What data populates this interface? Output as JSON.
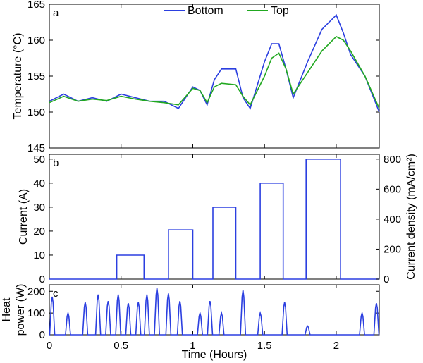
{
  "chart_data": [
    {
      "type": "line",
      "panel_label": "a",
      "ylabel": "Temperature (°C)",
      "xlim": [
        0,
        2.3
      ],
      "ylim": [
        145,
        165
      ],
      "yticks": [
        145,
        150,
        155,
        160,
        165
      ],
      "legend": {
        "placement": "top-center",
        "entries": [
          "Bottom",
          "Top"
        ]
      },
      "colors": {
        "bottom": "#2b3fe0",
        "top": "#21a820"
      },
      "series": [
        {
          "name": "Bottom",
          "x": [
            0,
            0.1,
            0.2,
            0.3,
            0.4,
            0.5,
            0.6,
            0.7,
            0.8,
            0.9,
            1.0,
            1.05,
            1.1,
            1.15,
            1.2,
            1.3,
            1.35,
            1.4,
            1.5,
            1.55,
            1.6,
            1.65,
            1.7,
            1.8,
            1.9,
            2.0,
            2.05,
            2.1,
            2.2,
            2.3
          ],
          "y": [
            151.5,
            152.5,
            151.5,
            152,
            151.5,
            152.5,
            152,
            151.5,
            151.5,
            150.5,
            153.5,
            153,
            151,
            154.5,
            156,
            156,
            152,
            150.5,
            157,
            159.5,
            159.5,
            156,
            152,
            157,
            161.5,
            163.5,
            161,
            158,
            155,
            150
          ]
        },
        {
          "name": "Top",
          "x": [
            0,
            0.1,
            0.2,
            0.3,
            0.4,
            0.5,
            0.6,
            0.7,
            0.8,
            0.9,
            1.0,
            1.05,
            1.1,
            1.15,
            1.2,
            1.3,
            1.35,
            1.4,
            1.5,
            1.55,
            1.6,
            1.65,
            1.7,
            1.8,
            1.9,
            2.0,
            2.05,
            2.1,
            2.2,
            2.3
          ],
          "y": [
            151.3,
            152.2,
            151.5,
            151.8,
            151.6,
            152.2,
            151.8,
            151.5,
            151.3,
            151,
            153.3,
            153,
            151.3,
            153.5,
            154,
            153.8,
            152.2,
            151,
            155,
            157.5,
            158.2,
            156,
            152.5,
            155.5,
            158.5,
            160.5,
            160,
            158.5,
            155,
            150.5
          ]
        }
      ]
    },
    {
      "type": "line",
      "panel_label": "b",
      "ylabel": "Current (A)",
      "ylabel_right": "Current density (mA/cm²)",
      "xlim": [
        0,
        2.3
      ],
      "ylim": [
        0,
        52
      ],
      "yticks": [
        0,
        10,
        20,
        30,
        40,
        50
      ],
      "yticks_right": [
        0,
        200,
        400,
        600,
        800
      ],
      "series": [
        {
          "name": "Current",
          "x": [
            0,
            0.47,
            0.47,
            0.66,
            0.66,
            0.83,
            0.83,
            1.0,
            1.0,
            1.14,
            1.14,
            1.3,
            1.3,
            1.47,
            1.47,
            1.63,
            1.63,
            1.79,
            1.79,
            2.03,
            2.03,
            2.3
          ],
          "y": [
            0,
            0,
            10,
            10,
            0,
            0,
            20.5,
            20.5,
            0,
            0,
            30,
            30,
            0,
            0,
            40,
            40,
            0,
            0,
            50,
            50,
            0,
            0
          ]
        }
      ]
    },
    {
      "type": "line",
      "panel_label": "c",
      "ylabel": "Heat power (W)",
      "ylabel_lines": [
        "Heat",
        "power (W)"
      ],
      "xlabel": "Time (Hours)",
      "xlim": [
        0,
        2.3
      ],
      "ylim": [
        0,
        230
      ],
      "yticks": [
        0,
        100,
        200
      ],
      "xticks": [
        0,
        0.5,
        1,
        1.5,
        2
      ],
      "pulse_width": 0.035,
      "series": [
        {
          "name": "Heat power",
          "pulse_centers": [
            0.02,
            0.13,
            0.25,
            0.34,
            0.41,
            0.48,
            0.55,
            0.62,
            0.68,
            0.75,
            0.83,
            0.91,
            1.05,
            1.12,
            1.2,
            1.35,
            1.47,
            1.64,
            1.8,
            2.18,
            2.28
          ],
          "pulse_peaks": [
            175,
            100,
            150,
            185,
            155,
            185,
            145,
            150,
            185,
            215,
            190,
            155,
            100,
            155,
            100,
            205,
            100,
            150,
            40,
            100,
            145
          ]
        }
      ]
    }
  ]
}
